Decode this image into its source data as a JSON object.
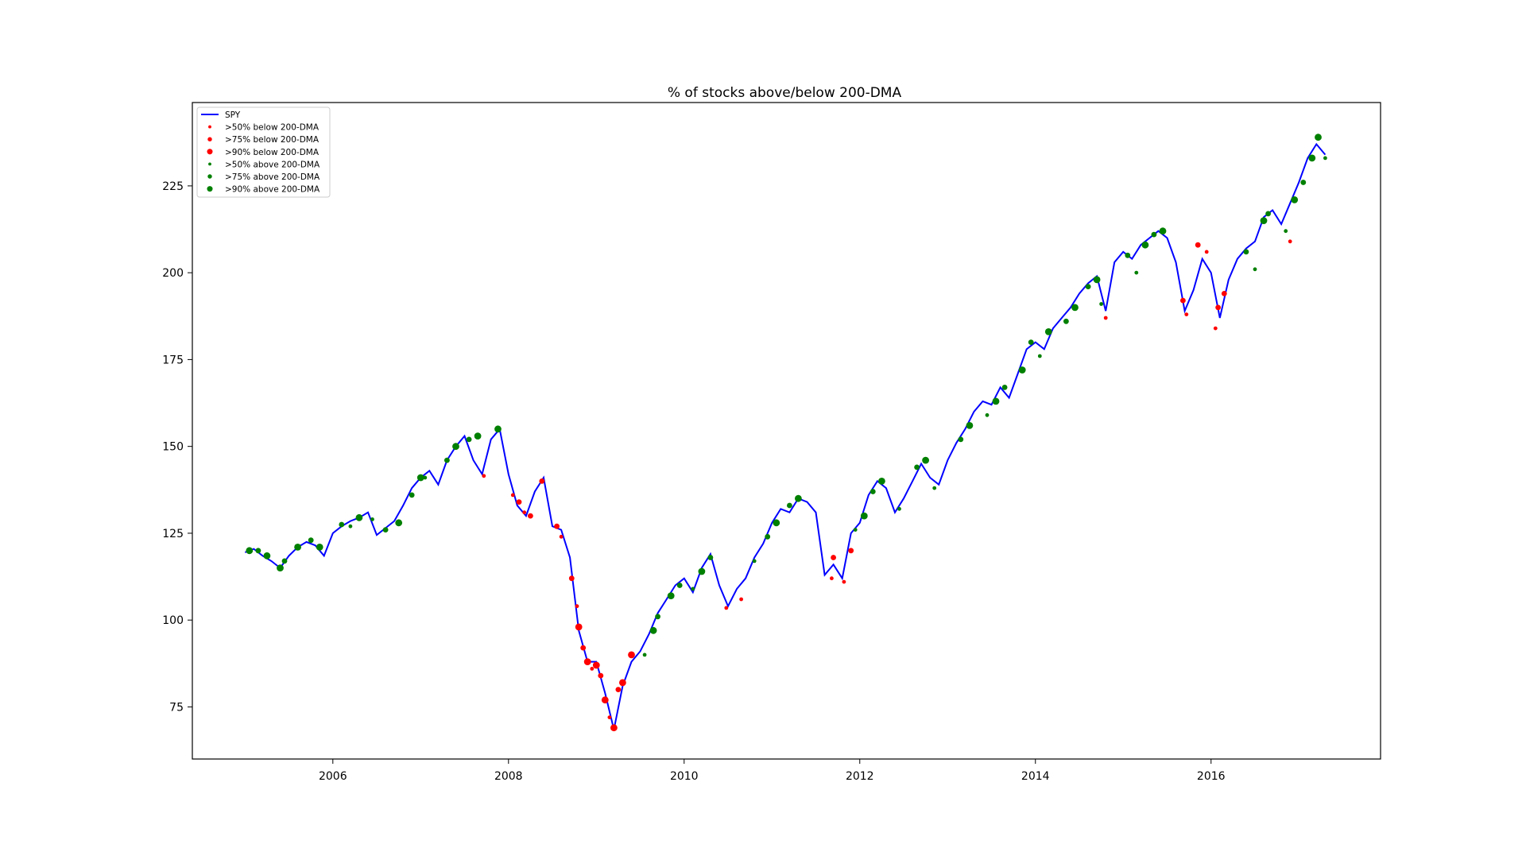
{
  "chart_data": {
    "type": "line",
    "title": "% of stocks above/below 200-DMA",
    "xlabel": "",
    "ylabel": "",
    "xlim": [
      2004.4,
      2017.93
    ],
    "ylim": [
      60,
      249
    ],
    "x_ticks": [
      2006,
      2008,
      2010,
      2012,
      2014,
      2016
    ],
    "y_ticks": [
      75,
      100,
      125,
      150,
      175,
      200,
      225
    ],
    "grid": false,
    "legend_position": "top-left",
    "colors": {
      "line": "#0000ff",
      "below": "#ff0000",
      "above": "#008000"
    },
    "legend": [
      {
        "label": "SPY",
        "kind": "line",
        "color": "#0000ff"
      },
      {
        "label": ">50% below 200-DMA",
        "kind": "dot",
        "color": "#ff0000",
        "size": "small"
      },
      {
        "label": ">75% below 200-DMA",
        "kind": "dot",
        "color": "#ff0000",
        "size": "medium"
      },
      {
        "label": ">90% below 200-DMA",
        "kind": "dot",
        "color": "#ff0000",
        "size": "large"
      },
      {
        "label": ">50% above 200-DMA",
        "kind": "dot",
        "color": "#008000",
        "size": "small"
      },
      {
        "label": ">75% above 200-DMA",
        "kind": "dot",
        "color": "#008000",
        "size": "medium"
      },
      {
        "label": ">90% above 200-DMA",
        "kind": "dot",
        "color": "#008000",
        "size": "large"
      }
    ],
    "series": [
      {
        "name": "SPY",
        "points": [
          [
            2005.0,
            119.5
          ],
          [
            2005.1,
            120.5
          ],
          [
            2005.2,
            118.5
          ],
          [
            2005.3,
            117.0
          ],
          [
            2005.4,
            115.0
          ],
          [
            2005.5,
            118.5
          ],
          [
            2005.6,
            121.0
          ],
          [
            2005.7,
            122.5
          ],
          [
            2005.8,
            121.5
          ],
          [
            2005.9,
            118.5
          ],
          [
            2006.0,
            125.0
          ],
          [
            2006.1,
            127.0
          ],
          [
            2006.2,
            128.5
          ],
          [
            2006.3,
            129.5
          ],
          [
            2006.4,
            131.0
          ],
          [
            2006.5,
            124.5
          ],
          [
            2006.6,
            126.5
          ],
          [
            2006.7,
            128.5
          ],
          [
            2006.8,
            133.0
          ],
          [
            2006.9,
            138.0
          ],
          [
            2007.0,
            141.0
          ],
          [
            2007.1,
            143.0
          ],
          [
            2007.2,
            139.0
          ],
          [
            2007.3,
            146.0
          ],
          [
            2007.4,
            150.0
          ],
          [
            2007.5,
            153.0
          ],
          [
            2007.6,
            146.0
          ],
          [
            2007.7,
            142.0
          ],
          [
            2007.8,
            152.0
          ],
          [
            2007.9,
            155.0
          ],
          [
            2008.0,
            142.0
          ],
          [
            2008.1,
            133.0
          ],
          [
            2008.2,
            130.0
          ],
          [
            2008.3,
            137.0
          ],
          [
            2008.4,
            141.0
          ],
          [
            2008.5,
            127.0
          ],
          [
            2008.6,
            126.0
          ],
          [
            2008.7,
            118.0
          ],
          [
            2008.8,
            97.0
          ],
          [
            2008.9,
            88.0
          ],
          [
            2009.0,
            88.0
          ],
          [
            2009.1,
            79.0
          ],
          [
            2009.2,
            68.5
          ],
          [
            2009.3,
            81.0
          ],
          [
            2009.4,
            88.0
          ],
          [
            2009.5,
            91.0
          ],
          [
            2009.6,
            96.0
          ],
          [
            2009.7,
            102.0
          ],
          [
            2009.8,
            106.0
          ],
          [
            2009.9,
            110.0
          ],
          [
            2010.0,
            112.0
          ],
          [
            2010.1,
            108.0
          ],
          [
            2010.2,
            115.0
          ],
          [
            2010.3,
            119.0
          ],
          [
            2010.4,
            110.0
          ],
          [
            2010.5,
            104.0
          ],
          [
            2010.6,
            109.0
          ],
          [
            2010.7,
            112.0
          ],
          [
            2010.8,
            118.0
          ],
          [
            2010.9,
            122.0
          ],
          [
            2011.0,
            128.0
          ],
          [
            2011.1,
            132.0
          ],
          [
            2011.2,
            131.0
          ],
          [
            2011.3,
            135.0
          ],
          [
            2011.4,
            134.0
          ],
          [
            2011.5,
            131.0
          ],
          [
            2011.6,
            113.0
          ],
          [
            2011.7,
            116.0
          ],
          [
            2011.8,
            112.0
          ],
          [
            2011.9,
            125.0
          ],
          [
            2012.0,
            128.0
          ],
          [
            2012.1,
            136.0
          ],
          [
            2012.2,
            140.0
          ],
          [
            2012.3,
            138.0
          ],
          [
            2012.4,
            131.0
          ],
          [
            2012.5,
            135.0
          ],
          [
            2012.6,
            140.0
          ],
          [
            2012.7,
            145.0
          ],
          [
            2012.8,
            141.0
          ],
          [
            2012.9,
            139.0
          ],
          [
            2013.0,
            146.0
          ],
          [
            2013.1,
            151.0
          ],
          [
            2013.2,
            155.0
          ],
          [
            2013.3,
            160.0
          ],
          [
            2013.4,
            163.0
          ],
          [
            2013.5,
            162.0
          ],
          [
            2013.6,
            167.0
          ],
          [
            2013.7,
            164.0
          ],
          [
            2013.8,
            171.0
          ],
          [
            2013.9,
            178.0
          ],
          [
            2014.0,
            180.0
          ],
          [
            2014.1,
            178.0
          ],
          [
            2014.2,
            184.0
          ],
          [
            2014.3,
            187.0
          ],
          [
            2014.4,
            190.0
          ],
          [
            2014.5,
            194.0
          ],
          [
            2014.6,
            197.0
          ],
          [
            2014.7,
            199.0
          ],
          [
            2014.8,
            189.0
          ],
          [
            2014.9,
            203.0
          ],
          [
            2015.0,
            206.0
          ],
          [
            2015.1,
            204.0
          ],
          [
            2015.2,
            208.0
          ],
          [
            2015.3,
            210.0
          ],
          [
            2015.4,
            212.0
          ],
          [
            2015.5,
            210.0
          ],
          [
            2015.6,
            203.0
          ],
          [
            2015.7,
            189.0
          ],
          [
            2015.8,
            195.0
          ],
          [
            2015.9,
            204.0
          ],
          [
            2016.0,
            200.0
          ],
          [
            2016.1,
            187.0
          ],
          [
            2016.2,
            198.0
          ],
          [
            2016.3,
            204.0
          ],
          [
            2016.4,
            207.0
          ],
          [
            2016.5,
            209.0
          ],
          [
            2016.6,
            216.0
          ],
          [
            2016.7,
            218.0
          ],
          [
            2016.8,
            214.0
          ],
          [
            2016.9,
            220.0
          ],
          [
            2017.0,
            226.0
          ],
          [
            2017.1,
            233.0
          ],
          [
            2017.2,
            237.0
          ],
          [
            2017.3,
            234.0
          ]
        ]
      },
      {
        "name": ">50% below 200-DMA",
        "color": "#ff0000",
        "size": "small",
        "points": [
          [
            2007.72,
            141.5
          ],
          [
            2008.05,
            136.0
          ],
          [
            2008.18,
            131.0
          ],
          [
            2008.6,
            124.0
          ],
          [
            2008.78,
            104.0
          ],
          [
            2008.95,
            86.0
          ],
          [
            2009.15,
            72.0
          ],
          [
            2010.48,
            103.5
          ],
          [
            2010.65,
            106.0
          ],
          [
            2011.68,
            112.0
          ],
          [
            2011.82,
            111.0
          ],
          [
            2014.8,
            187.0
          ],
          [
            2015.72,
            188.0
          ],
          [
            2015.95,
            206.0
          ],
          [
            2016.05,
            184.0
          ],
          [
            2016.9,
            209.0
          ]
        ]
      },
      {
        "name": ">75% below 200-DMA",
        "color": "#ff0000",
        "size": "medium",
        "points": [
          [
            2008.12,
            134.0
          ],
          [
            2008.25,
            130.0
          ],
          [
            2008.38,
            140.0
          ],
          [
            2008.55,
            127.0
          ],
          [
            2008.72,
            112.0
          ],
          [
            2008.85,
            92.0
          ],
          [
            2009.05,
            84.0
          ],
          [
            2009.25,
            80.0
          ],
          [
            2011.7,
            118.0
          ],
          [
            2011.9,
            120.0
          ],
          [
            2015.68,
            192.0
          ],
          [
            2015.85,
            208.0
          ],
          [
            2016.08,
            190.0
          ],
          [
            2016.15,
            194.0
          ]
        ]
      },
      {
        "name": ">90% below 200-DMA",
        "color": "#ff0000",
        "size": "large",
        "points": [
          [
            2008.8,
            98.0
          ],
          [
            2008.9,
            88.0
          ],
          [
            2009.0,
            87.0
          ],
          [
            2009.1,
            77.0
          ],
          [
            2009.2,
            69.0
          ],
          [
            2009.3,
            82.0
          ],
          [
            2009.4,
            90.0
          ]
        ]
      },
      {
        "name": ">50% above 200-DMA",
        "color": "#008000",
        "size": "small",
        "points": [
          [
            2006.2,
            127.0
          ],
          [
            2006.45,
            129.0
          ],
          [
            2007.05,
            141.0
          ],
          [
            2009.55,
            90.0
          ],
          [
            2010.1,
            109.0
          ],
          [
            2010.8,
            117.0
          ],
          [
            2011.95,
            126.0
          ],
          [
            2012.45,
            132.0
          ],
          [
            2012.85,
            138.0
          ],
          [
            2013.45,
            159.0
          ],
          [
            2014.05,
            176.0
          ],
          [
            2014.75,
            191.0
          ],
          [
            2015.15,
            200.0
          ],
          [
            2016.5,
            201.0
          ],
          [
            2016.85,
            212.0
          ],
          [
            2017.3,
            233.0
          ]
        ]
      },
      {
        "name": ">75% above 200-DMA",
        "color": "#008000",
        "size": "medium",
        "points": [
          [
            2005.15,
            120.0
          ],
          [
            2005.45,
            117.0
          ],
          [
            2005.75,
            123.0
          ],
          [
            2006.1,
            127.5
          ],
          [
            2006.6,
            126.0
          ],
          [
            2006.9,
            136.0
          ],
          [
            2007.3,
            146.0
          ],
          [
            2007.55,
            152.0
          ],
          [
            2009.7,
            101.0
          ],
          [
            2009.95,
            110.0
          ],
          [
            2010.3,
            118.0
          ],
          [
            2010.95,
            124.0
          ],
          [
            2011.2,
            133.0
          ],
          [
            2012.15,
            137.0
          ],
          [
            2012.65,
            144.0
          ],
          [
            2013.15,
            152.0
          ],
          [
            2013.65,
            167.0
          ],
          [
            2013.95,
            180.0
          ],
          [
            2014.35,
            186.0
          ],
          [
            2014.6,
            196.0
          ],
          [
            2015.05,
            205.0
          ],
          [
            2015.35,
            211.0
          ],
          [
            2016.4,
            206.0
          ],
          [
            2016.65,
            217.0
          ],
          [
            2017.05,
            226.0
          ]
        ]
      },
      {
        "name": ">90% above 200-DMA",
        "color": "#008000",
        "size": "large",
        "points": [
          [
            2005.05,
            120.0
          ],
          [
            2005.25,
            118.5
          ],
          [
            2005.4,
            115.0
          ],
          [
            2005.6,
            121.0
          ],
          [
            2005.85,
            121.0
          ],
          [
            2006.3,
            129.5
          ],
          [
            2006.75,
            128.0
          ],
          [
            2007.0,
            141.0
          ],
          [
            2007.4,
            150.0
          ],
          [
            2007.65,
            153.0
          ],
          [
            2007.88,
            155.0
          ],
          [
            2009.65,
            97.0
          ],
          [
            2009.85,
            107.0
          ],
          [
            2010.2,
            114.0
          ],
          [
            2011.05,
            128.0
          ],
          [
            2011.3,
            135.0
          ],
          [
            2012.05,
            130.0
          ],
          [
            2012.25,
            140.0
          ],
          [
            2012.75,
            146.0
          ],
          [
            2013.25,
            156.0
          ],
          [
            2013.55,
            163.0
          ],
          [
            2013.85,
            172.0
          ],
          [
            2014.15,
            183.0
          ],
          [
            2014.45,
            190.0
          ],
          [
            2014.7,
            198.0
          ],
          [
            2015.25,
            208.0
          ],
          [
            2015.45,
            212.0
          ],
          [
            2016.6,
            215.0
          ],
          [
            2016.95,
            221.0
          ],
          [
            2017.15,
            233.0
          ],
          [
            2017.22,
            239.0
          ]
        ]
      }
    ]
  }
}
